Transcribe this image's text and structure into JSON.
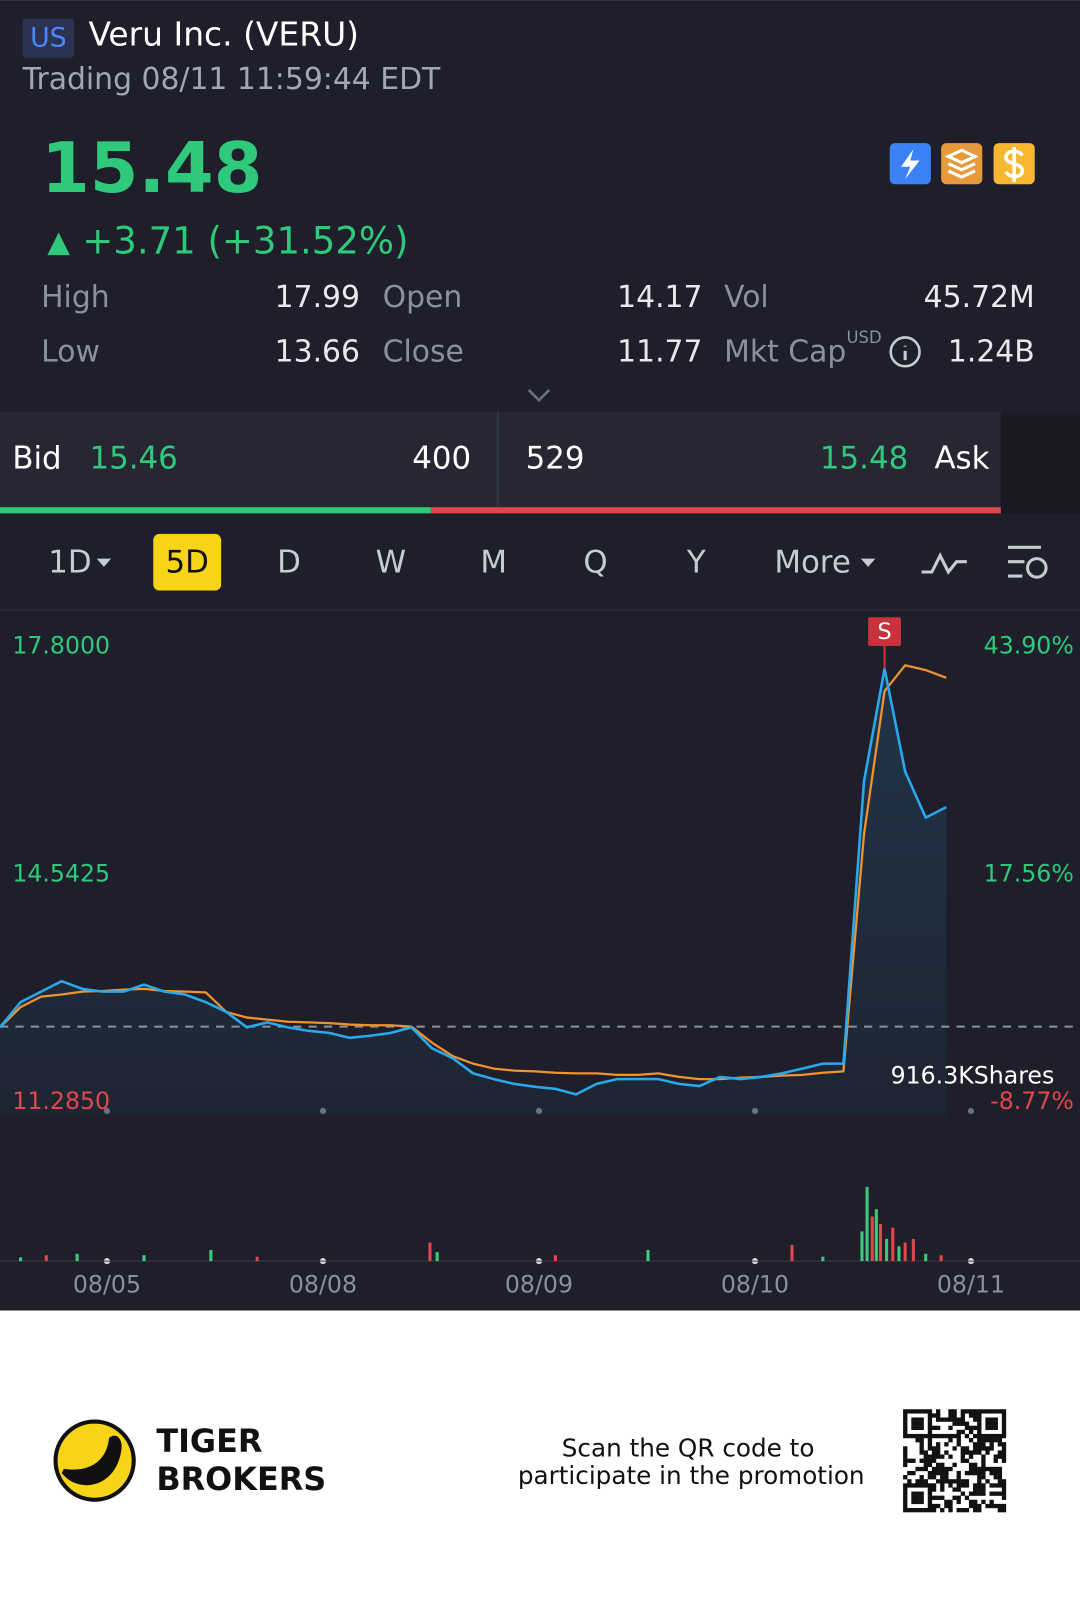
{
  "header": {
    "market": "US",
    "title": "Veru Inc. (VERU)",
    "status": "Trading 08/11 11:59:44 EDT"
  },
  "quote": {
    "price": "15.48",
    "change": "+3.71 (+31.52%)"
  },
  "stats": [
    {
      "label": "High",
      "value": "17.99"
    },
    {
      "label": "Open",
      "value": "14.17"
    },
    {
      "label": "Vol",
      "value": "45.72M"
    },
    {
      "label": "Low",
      "value": "13.66"
    },
    {
      "label": "Close",
      "value": "11.77"
    },
    {
      "label": "Mkt Cap",
      "value": "1.24B",
      "unit": "USD"
    }
  ],
  "order_book": {
    "bid_label": "Bid",
    "bid": "15.46",
    "bid_size": 400,
    "ask_size": 529,
    "ask": "15.48",
    "ask_label": "Ask"
  },
  "periods": [
    "1D",
    "5D",
    "D",
    "W",
    "M",
    "Q",
    "Y",
    "More"
  ],
  "selected_period": 1,
  "chart_data": {
    "type": "line",
    "xlim": [
      0,
      52.5
    ],
    "xticks": [
      {
        "value": 5.2,
        "label": "08/05"
      },
      {
        "value": 15.7,
        "label": "08/08"
      },
      {
        "value": 26.2,
        "label": "08/09"
      },
      {
        "value": 36.7,
        "label": "08/10"
      },
      {
        "value": 47.2,
        "label": "08/11"
      }
    ],
    "ylim": [
      11.09,
      18.33
    ],
    "yticks": [
      {
        "value": 17.8,
        "label": "17.8000"
      },
      {
        "value": 14.5425,
        "label": "14.5425"
      },
      {
        "value": 11.285,
        "label": "11.2850"
      }
    ],
    "y2lim": [
      -10.35,
      48.18
    ],
    "y2ticks": [
      {
        "value": 43.9,
        "label": "43.90%"
      },
      {
        "value": 17.56,
        "label": "17.56%"
      },
      {
        "value": -8.77,
        "label": "-8.77%"
      }
    ],
    "reference_line": 12.37,
    "series": [
      {
        "color": "#29a8ec",
        "values": [
          12.36,
          12.72,
          12.87,
          13.02,
          12.91,
          12.87,
          12.87,
          12.97,
          12.87,
          12.83,
          12.72,
          12.58,
          12.36,
          12.43,
          12.36,
          12.31,
          12.28,
          12.21,
          12.24,
          12.28,
          12.36,
          12.06,
          11.92,
          11.7,
          11.62,
          11.55,
          11.51,
          11.48,
          11.4,
          11.55,
          11.62,
          11.62,
          11.62,
          11.55,
          11.52,
          11.65,
          11.62,
          11.65,
          11.7,
          11.77,
          11.84,
          11.84,
          15.88,
          17.49,
          16.02,
          15.36,
          15.51
        ]
      },
      {
        "color": "#f0922f",
        "values": [
          12.36,
          12.65,
          12.8,
          12.83,
          12.87,
          12.88,
          12.9,
          12.91,
          12.88,
          12.87,
          12.86,
          12.58,
          12.5,
          12.47,
          12.44,
          12.43,
          12.42,
          12.4,
          12.39,
          12.39,
          12.37,
          12.14,
          11.95,
          11.84,
          11.77,
          11.74,
          11.73,
          11.71,
          11.7,
          11.7,
          11.68,
          11.68,
          11.7,
          11.65,
          11.62,
          11.62,
          11.64,
          11.65,
          11.67,
          11.68,
          11.71,
          11.73,
          15.12,
          17.17,
          17.54,
          17.47,
          17.36
        ]
      }
    ],
    "annotation": {
      "text": "S",
      "x": 43
    },
    "volume": {
      "max": {
        "value": 916300,
        "label": "916.3KShares"
      },
      "x": [
        1,
        2.25,
        3.75,
        7,
        10.25,
        12.5,
        20.9,
        21.25,
        27,
        31.5,
        38.5,
        40,
        41.9,
        42.15,
        42.4,
        42.6,
        42.8,
        43.1,
        43.4,
        43.7,
        44,
        44.4,
        45,
        45.75
      ],
      "values": [
        33000,
        52000,
        65000,
        52000,
        98000,
        39000,
        164000,
        79000,
        52000,
        98000,
        144000,
        39000,
        262000,
        654500,
        393000,
        458000,
        327000,
        196000,
        295000,
        131000,
        164000,
        196000,
        65000,
        52000
      ],
      "colors": [
        "#3ec97a",
        "#e0474c",
        "#3ec97a",
        "#3ec97a",
        "#3ec97a",
        "#e0474c",
        "#e0474c",
        "#3ec97a",
        "#e0474c",
        "#3ec97a",
        "#e0474c",
        "#3ec97a",
        "#3ec97a",
        "#3ec97a",
        "#e0474c",
        "#3ec97a",
        "#e0474c",
        "#3ec97a",
        "#e0474c",
        "#3ec97a",
        "#e0474c",
        "#e0474c",
        "#3ec97a",
        "#e0474c"
      ]
    }
  },
  "footer": {
    "brand": [
      "TIGER",
      "BROKERS"
    ],
    "promo": [
      "Scan the QR code to",
      "participate in the promotion"
    ]
  }
}
